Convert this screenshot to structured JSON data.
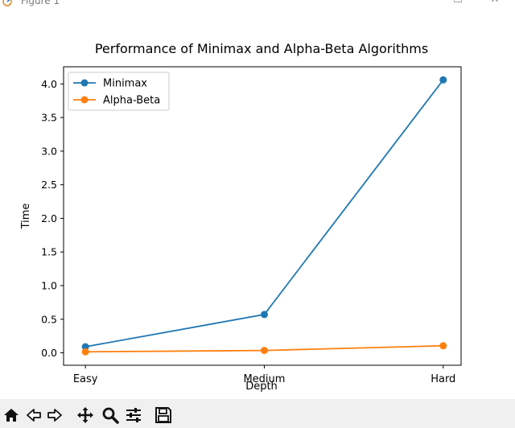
{
  "window": {
    "title": "Figure 1",
    "controls": {
      "minimize": "—",
      "maximize": "☐",
      "close": "✕"
    }
  },
  "toolbar": {
    "tools": [
      "home-icon",
      "back-arrow-icon",
      "forward-arrow-icon",
      "pan-icon",
      "zoom-icon",
      "configure-subplots-icon",
      "save-icon"
    ]
  },
  "colors": {
    "minimax": "#1f77b4",
    "alpha_beta": "#ff7f0e"
  },
  "chart_data": {
    "type": "line",
    "title": "Performance of Minimax and Alpha-Beta Algorithms",
    "xlabel": "Depth",
    "ylabel": "Time",
    "categories": [
      "Easy",
      "Medium",
      "Hard"
    ],
    "series": [
      {
        "name": "Minimax",
        "values": [
          0.09,
          0.57,
          4.06
        ]
      },
      {
        "name": "Alpha-Beta",
        "values": [
          0.015,
          0.035,
          0.105
        ]
      }
    ],
    "ylim": [
      -0.185,
      4.255
    ],
    "yticks": [
      0.0,
      0.5,
      1.0,
      1.5,
      2.0,
      2.5,
      3.0,
      3.5,
      4.0
    ],
    "ytick_labels": [
      "0.0",
      "0.5",
      "1.0",
      "1.5",
      "2.0",
      "2.5",
      "3.0",
      "3.5",
      "4.0"
    ],
    "grid": false,
    "legend": "upper-left",
    "markers": "circle"
  }
}
